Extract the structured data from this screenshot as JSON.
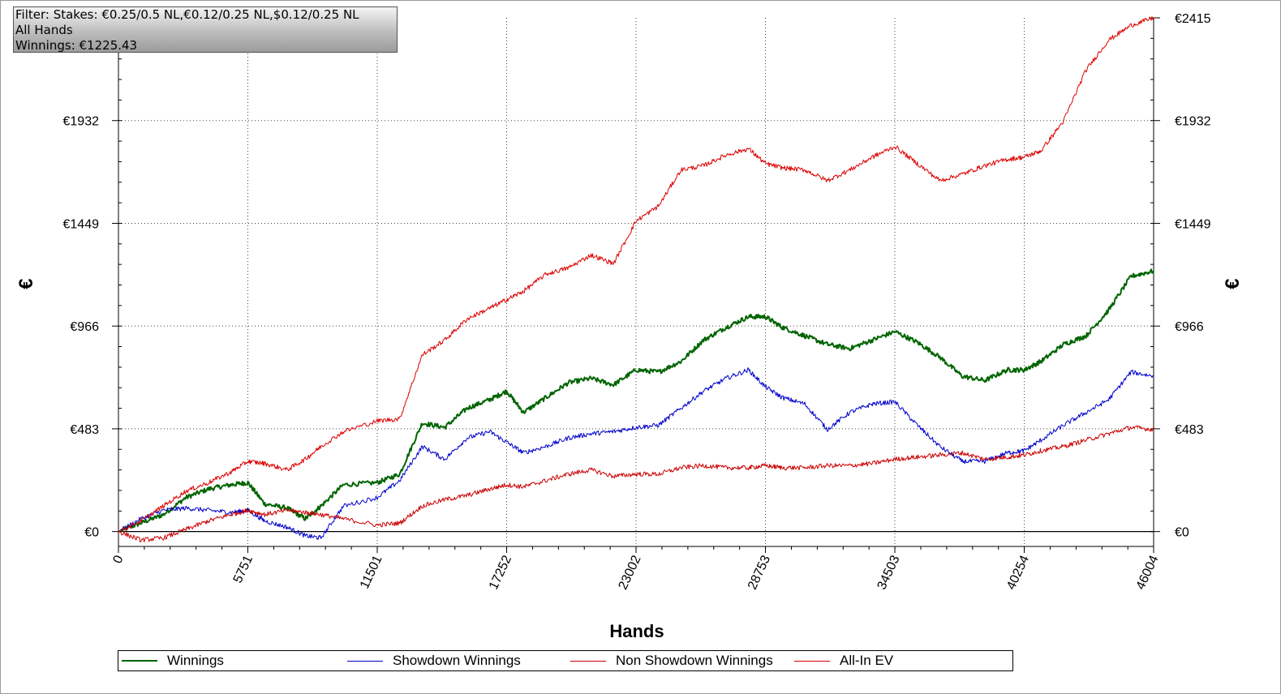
{
  "info_box": {
    "filter": "Filter: Stakes: €0.25/0.5 NL,€0.12/0.25 NL,$0.12/0.25 NL",
    "hands": "All Hands",
    "winnings": "Winnings: €1225.43"
  },
  "chart_data": {
    "type": "line",
    "xlabel": "Hands",
    "ylabel": "€",
    "xlim": [
      0,
      46004
    ],
    "ylim": [
      -70,
      2415
    ],
    "x_ticks": [
      "0",
      "5751",
      "11501",
      "17252",
      "23002",
      "28753",
      "34503",
      "40254",
      "46004"
    ],
    "y_ticks_left": [
      "€0",
      "€483",
      "€966",
      "€1449",
      "€1932"
    ],
    "y_ticks_right": [
      "€0",
      "€483",
      "€966",
      "€1449",
      "€1932",
      "€2415"
    ],
    "grid": true,
    "legend_position": "bottom",
    "x": [
      0,
      1000,
      2000,
      3000,
      4000,
      5000,
      5751,
      6500,
      7500,
      8300,
      9000,
      10000,
      11501,
      12500,
      13500,
      14500,
      15500,
      16500,
      17252,
      18000,
      19000,
      20000,
      21000,
      22000,
      23002,
      24000,
      25000,
      26000,
      27000,
      28000,
      28753,
      29500,
      30500,
      31500,
      32500,
      33500,
      34503,
      35500,
      36500,
      37500,
      38500,
      39500,
      40254,
      41000,
      42000,
      43000,
      44000,
      45000,
      46004
    ],
    "series": [
      {
        "name": "Winnings",
        "color": "#006400",
        "values": [
          0,
          40,
          80,
          160,
          200,
          220,
          230,
          130,
          110,
          60,
          120,
          220,
          230,
          270,
          510,
          490,
          580,
          620,
          660,
          560,
          630,
          700,
          720,
          690,
          760,
          750,
          800,
          900,
          960,
          1010,
          1010,
          960,
          920,
          880,
          860,
          900,
          940,
          890,
          820,
          730,
          710,
          760,
          760,
          800,
          880,
          920,
          1040,
          1200,
          1225
        ]
      },
      {
        "name": "Showdown Winnings",
        "color": "#0000cc",
        "values": [
          0,
          60,
          100,
          110,
          100,
          90,
          100,
          50,
          20,
          -20,
          -30,
          120,
          160,
          240,
          400,
          340,
          440,
          470,
          420,
          370,
          400,
          440,
          460,
          470,
          490,
          500,
          580,
          660,
          720,
          760,
          680,
          630,
          600,
          480,
          560,
          600,
          610,
          500,
          400,
          330,
          330,
          370,
          380,
          430,
          500,
          560,
          620,
          750,
          730
        ]
      },
      {
        "name": "Non Showdown Winnings",
        "color": "#cc0000",
        "values": [
          0,
          -40,
          -30,
          10,
          50,
          80,
          100,
          80,
          100,
          90,
          80,
          60,
          30,
          40,
          120,
          150,
          170,
          200,
          220,
          210,
          240,
          270,
          290,
          260,
          270,
          270,
          300,
          310,
          300,
          300,
          310,
          300,
          300,
          310,
          310,
          320,
          340,
          350,
          360,
          370,
          340,
          350,
          360,
          380,
          400,
          430,
          460,
          490,
          480
        ]
      },
      {
        "name": "All-In EV",
        "color": "#dd0000",
        "values": [
          0,
          50,
          120,
          190,
          230,
          280,
          330,
          320,
          290,
          340,
          400,
          470,
          520,
          530,
          830,
          900,
          1000,
          1050,
          1090,
          1130,
          1210,
          1240,
          1300,
          1260,
          1460,
          1530,
          1700,
          1720,
          1770,
          1800,
          1730,
          1710,
          1700,
          1650,
          1700,
          1760,
          1810,
          1730,
          1650,
          1680,
          1720,
          1750,
          1760,
          1790,
          1930,
          2170,
          2310,
          2380,
          2415
        ]
      }
    ]
  }
}
